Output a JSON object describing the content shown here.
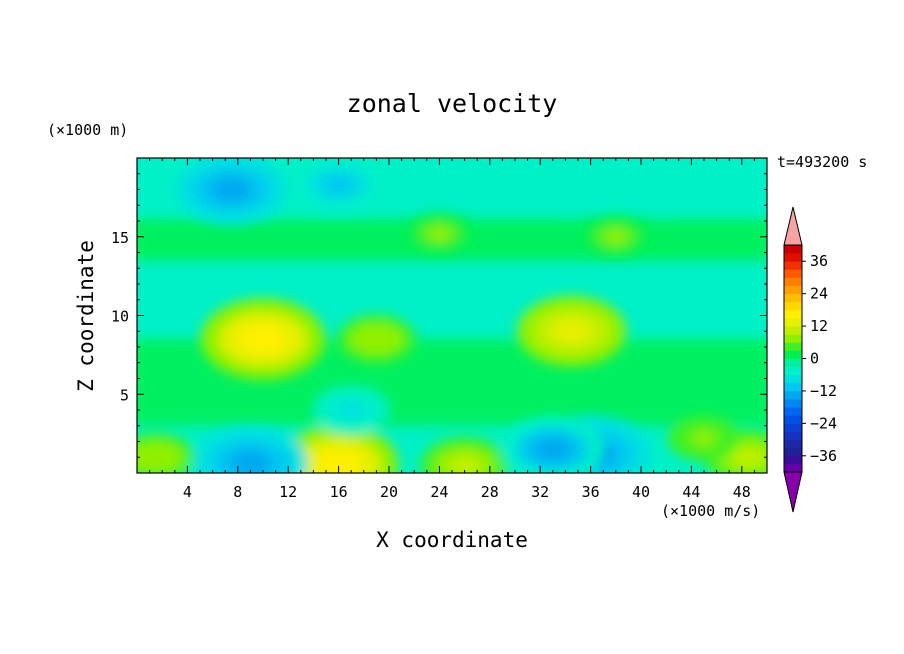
{
  "chart_data": {
    "type": "heatmap",
    "title": "zonal velocity",
    "xlabel": "X coordinate",
    "ylabel": "Z coordinate",
    "y_unit": "(×1000 m)",
    "x_unit": "(×1000 m/s)",
    "time_label": "t=493200 s",
    "xlim": [
      0,
      50
    ],
    "ylim": [
      0,
      20
    ],
    "x_ticks": [
      "4",
      "8",
      "12",
      "16",
      "20",
      "24",
      "28",
      "32",
      "36",
      "40",
      "44",
      "48"
    ],
    "y_ticks": [
      "5",
      "10",
      "15"
    ],
    "colorbar": {
      "levels": [
        -42,
        -39,
        -36,
        -33,
        -30,
        -27,
        -24,
        -21,
        -18,
        -15,
        -12,
        -9,
        -6,
        -3,
        0,
        3,
        6,
        9,
        12,
        15,
        18,
        21,
        24,
        27,
        30,
        33,
        36,
        39,
        42
      ],
      "tick_labels": [
        "36",
        "24",
        "12",
        "0",
        "−12",
        "−24",
        "−36"
      ],
      "extend": "both"
    },
    "features": [
      {
        "x": 10,
        "z": 8.5,
        "value": 17
      },
      {
        "x": 19,
        "z": 8.5,
        "value": 8
      },
      {
        "x": 34.5,
        "z": 9,
        "value": 14
      },
      {
        "x": 16,
        "z": 0.6,
        "value": 16
      },
      {
        "x": 26,
        "z": 0.5,
        "value": 10
      },
      {
        "x": 9,
        "z": 0.6,
        "value": -15
      },
      {
        "x": 36,
        "z": 1.2,
        "value": -16
      },
      {
        "x": 33,
        "z": 1.5,
        "value": -13
      },
      {
        "x": 16,
        "z": 18.3,
        "value": -10
      },
      {
        "x": 7.5,
        "z": 18,
        "value": -14
      },
      {
        "x": 17,
        "z": 4,
        "value": -8
      },
      {
        "x": 1.5,
        "z": 1,
        "value": 8
      },
      {
        "x": 48.5,
        "z": 1,
        "value": 10
      },
      {
        "x": 45,
        "z": 2.2,
        "value": 7
      },
      {
        "x": 24,
        "z": 15.2,
        "value": 6
      },
      {
        "x": 38,
        "z": 15,
        "value": 6
      }
    ]
  },
  "colors": {
    "c_neg42": "#6600aa",
    "c_neg39": "#3a0d9a",
    "c_neg36": "#1f1f96",
    "c_neg33": "#1c28a8",
    "c_neg30": "#1532c0",
    "c_neg27": "#0d3fd4",
    "c_neg24": "#0050e6",
    "c_neg21": "#0068f0",
    "c_neg18": "#0088f0",
    "c_neg15": "#00a8f0",
    "c_neg12": "#00c8f0",
    "c_neg9": "#00e0e0",
    "c_neg6": "#00f0c8",
    "c_neg3": "#00f0a0",
    "c_0": "#00f050",
    "c_3": "#40f020",
    "c_6": "#90f000",
    "c_9": "#c0f000",
    "c_12": "#e6f000",
    "c_15": "#fff000",
    "c_18": "#ffd800",
    "c_21": "#ffbe00",
    "c_24": "#ffa000",
    "c_27": "#ff8000",
    "c_30": "#ff5a00",
    "c_33": "#f03000",
    "c_36": "#e01000",
    "c_39": "#c80000",
    "over": "#f5a3a3",
    "under": "#8800aa"
  }
}
